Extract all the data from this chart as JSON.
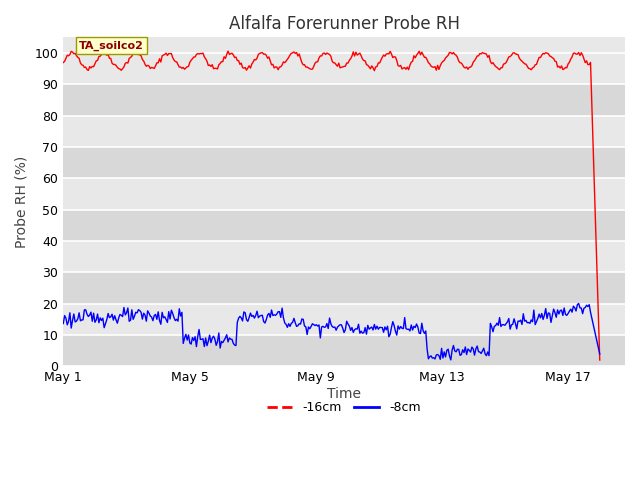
{
  "title": "Alfalfa Forerunner Probe RH",
  "ylabel": "Probe RH (%)",
  "xlabel": "Time",
  "ylim": [
    0,
    105
  ],
  "yticks": [
    0,
    10,
    20,
    30,
    40,
    50,
    60,
    70,
    80,
    90,
    100
  ],
  "fig_bg_color": "#ffffff",
  "plot_bg_color": "#e8e8e8",
  "band_color_dark": "#d8d8d8",
  "band_color_light": "#e8e8e8",
  "red_label": "-16cm",
  "blue_label": "-8cm",
  "annotation_text": "TA_soilco2",
  "annotation_bg": "#ffffcc",
  "annotation_border": "#cccc00",
  "red_color": "#ff0000",
  "blue_color": "#0000ff",
  "x_tick_labels": [
    "May 1",
    "May 5",
    "May 9",
    "May 13",
    "May 17"
  ],
  "x_tick_positions": [
    0,
    4,
    8,
    12,
    16
  ],
  "xlim": [
    0,
    17.8
  ],
  "title_fontsize": 12,
  "axis_label_fontsize": 10,
  "tick_fontsize": 9
}
